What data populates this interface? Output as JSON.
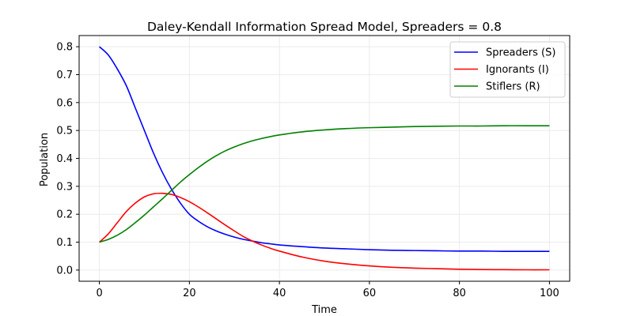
{
  "chart_data": {
    "type": "line",
    "title": "Daley-Kendall Information Spread Model, Spreaders = 0.8",
    "xlabel": "Time",
    "ylabel": "Population",
    "xlim": [
      -4.5,
      104.5
    ],
    "ylim": [
      -0.04,
      0.84
    ],
    "xticks": [
      0,
      20,
      40,
      60,
      80,
      100
    ],
    "yticks": [
      0.0,
      0.1,
      0.2,
      0.3,
      0.4,
      0.5,
      0.6,
      0.7,
      0.8
    ],
    "grid": true,
    "legend_position": "top-right",
    "x": [
      0,
      2,
      4,
      6,
      8,
      10,
      12,
      14,
      16,
      18,
      20,
      22,
      24,
      26,
      28,
      30,
      32,
      34,
      36,
      38,
      40,
      45,
      50,
      55,
      60,
      65,
      70,
      75,
      80,
      85,
      90,
      95,
      100
    ],
    "series": [
      {
        "name": "Spreaders (S)",
        "color": "#0000ff",
        "values": [
          0.8,
          0.77,
          0.72,
          0.66,
          0.58,
          0.5,
          0.42,
          0.35,
          0.29,
          0.24,
          0.2,
          0.175,
          0.155,
          0.14,
          0.128,
          0.118,
          0.11,
          0.104,
          0.098,
          0.094,
          0.09,
          0.084,
          0.079,
          0.076,
          0.073,
          0.071,
          0.07,
          0.069,
          0.068,
          0.068,
          0.067,
          0.067,
          0.067
        ]
      },
      {
        "name": "Ignorants (I)",
        "color": "#ff0000",
        "values": [
          0.1,
          0.13,
          0.17,
          0.21,
          0.24,
          0.262,
          0.273,
          0.275,
          0.271,
          0.26,
          0.245,
          0.226,
          0.205,
          0.183,
          0.161,
          0.14,
          0.12,
          0.104,
          0.09,
          0.078,
          0.068,
          0.047,
          0.032,
          0.022,
          0.015,
          0.01,
          0.007,
          0.005,
          0.003,
          0.002,
          0.0015,
          0.001,
          0.001
        ]
      },
      {
        "name": "Stiflers (R)",
        "color": "#008000",
        "values": [
          0.1,
          0.11,
          0.125,
          0.145,
          0.17,
          0.197,
          0.226,
          0.255,
          0.285,
          0.315,
          0.342,
          0.367,
          0.39,
          0.41,
          0.427,
          0.441,
          0.453,
          0.463,
          0.471,
          0.478,
          0.484,
          0.495,
          0.502,
          0.507,
          0.51,
          0.512,
          0.514,
          0.515,
          0.516,
          0.516,
          0.517,
          0.517,
          0.517
        ]
      }
    ]
  }
}
